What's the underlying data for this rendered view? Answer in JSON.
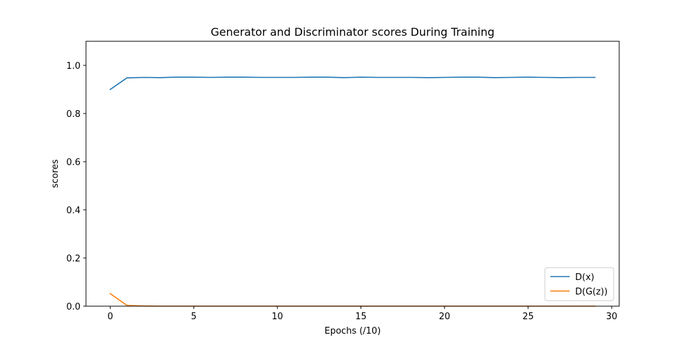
{
  "chart_data": {
    "type": "line",
    "title": "Generator and Discriminator scores During Training",
    "xlabel": "Epochs (/10)",
    "ylabel": "scores",
    "xlim": [
      -1.45,
      30.45
    ],
    "ylim": [
      0.0,
      1.1
    ],
    "xticks": [
      "0",
      "5",
      "10",
      "15",
      "20",
      "25",
      "30"
    ],
    "yticks": [
      "0.0",
      "0.2",
      "0.4",
      "0.6",
      "0.8",
      "1.0"
    ],
    "grid": false,
    "legend_position": "lower-right",
    "x": [
      0,
      1,
      2,
      3,
      4,
      5,
      6,
      7,
      8,
      9,
      10,
      11,
      12,
      13,
      14,
      15,
      16,
      17,
      18,
      19,
      20,
      21,
      22,
      23,
      24,
      25,
      26,
      27,
      28,
      29
    ],
    "series": [
      {
        "name": "D(x)",
        "color": "#1f77b4",
        "values": [
          0.9,
          0.948,
          0.95,
          0.949,
          0.951,
          0.951,
          0.95,
          0.951,
          0.951,
          0.95,
          0.95,
          0.95,
          0.951,
          0.951,
          0.949,
          0.951,
          0.95,
          0.95,
          0.95,
          0.949,
          0.95,
          0.951,
          0.951,
          0.949,
          0.95,
          0.951,
          0.95,
          0.949,
          0.95,
          0.95
        ]
      },
      {
        "name": "D(G(z))",
        "color": "#ff7f0e",
        "values": [
          0.052,
          0.003,
          0.001,
          0.0,
          0.0,
          0.0,
          0.0,
          0.0,
          0.0,
          0.0,
          0.0,
          0.0,
          0.0,
          0.0,
          0.0,
          0.0,
          0.0,
          0.0,
          0.0,
          0.0,
          0.0,
          0.0,
          0.0,
          0.0,
          0.0,
          0.0,
          0.0,
          0.0,
          0.0,
          0.0
        ]
      }
    ]
  }
}
